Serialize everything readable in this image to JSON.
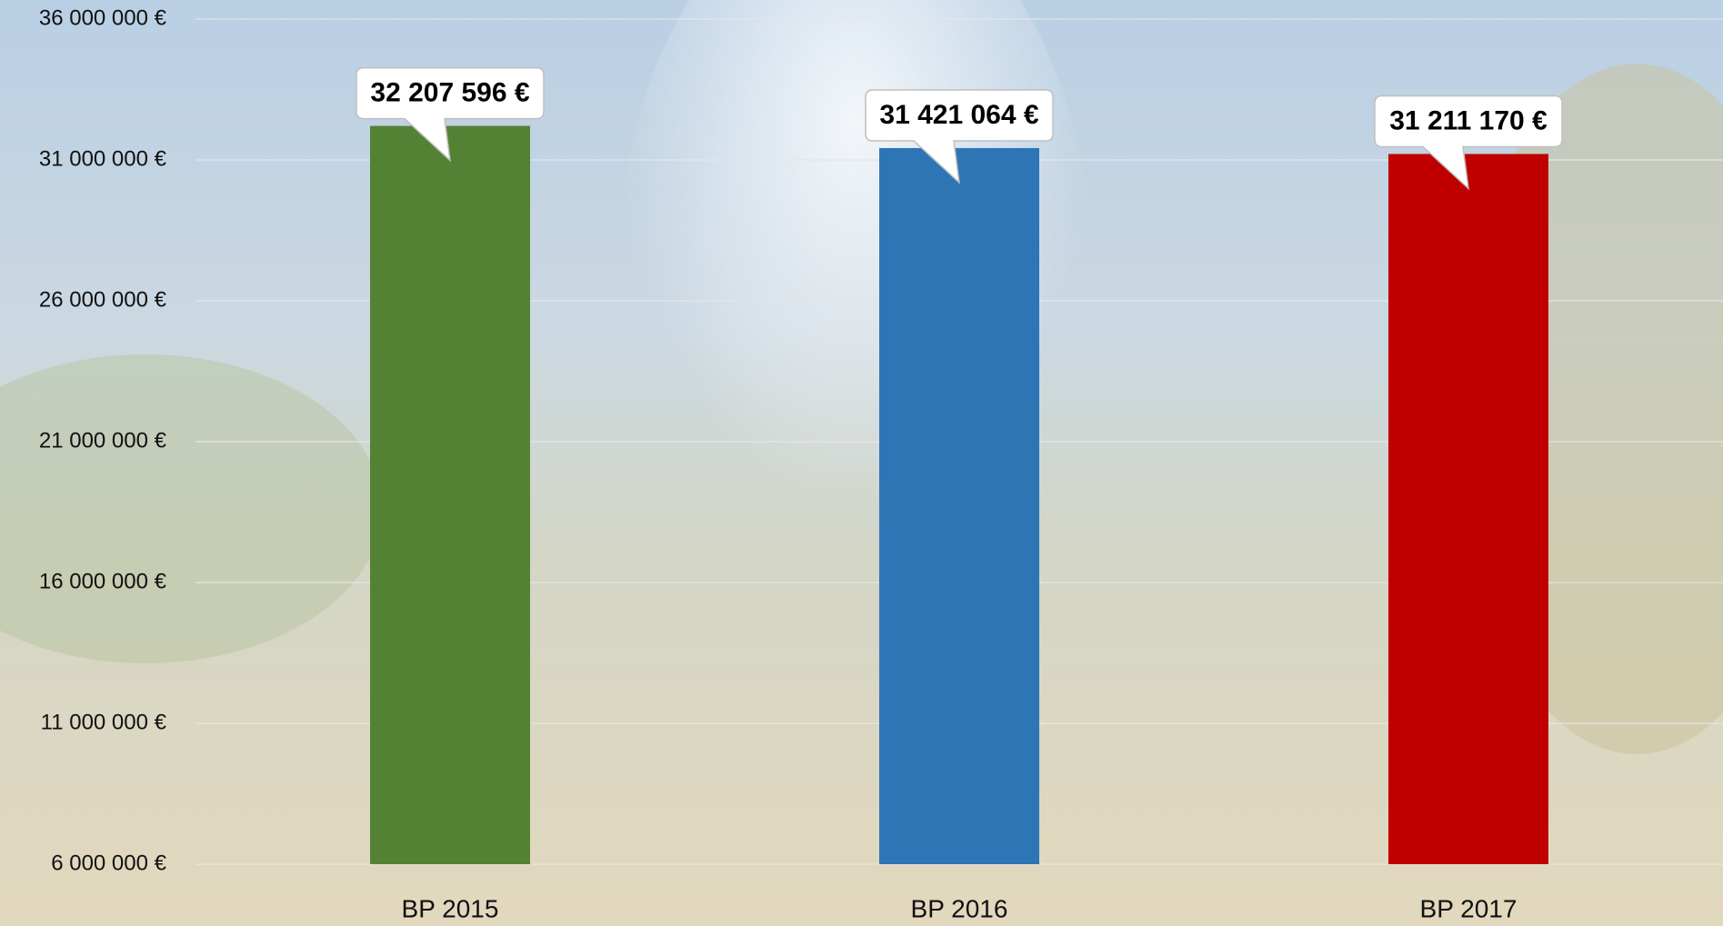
{
  "chart_data": {
    "type": "bar",
    "categories": [
      "BP 2015",
      "BP 2016",
      "BP 2017"
    ],
    "values": [
      32207596,
      31421064,
      31211170
    ],
    "value_labels": [
      "32 207 596 €",
      "31 421 064 €",
      "31 211 170 €"
    ],
    "colors": [
      "#548235",
      "#2e75b6",
      "#c00000"
    ],
    "ylim": [
      6000000,
      36000000
    ],
    "yticks": [
      {
        "value": 6000000,
        "label": "6 000 000 €"
      },
      {
        "value": 11000000,
        "label": "11 000 000 €"
      },
      {
        "value": 16000000,
        "label": "16 000 000 €"
      },
      {
        "value": 21000000,
        "label": "21 000 000 €"
      },
      {
        "value": 26000000,
        "label": "26 000 000 €"
      },
      {
        "value": 31000000,
        "label": "31 000 000 €"
      },
      {
        "value": 36000000,
        "label": "36 000 000 €"
      }
    ],
    "grid": true
  }
}
